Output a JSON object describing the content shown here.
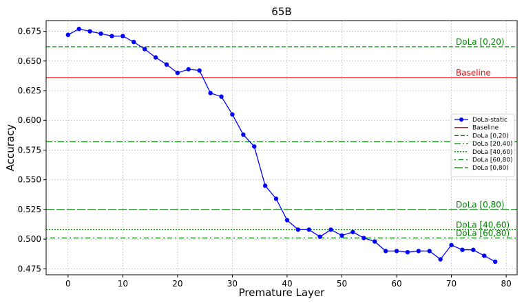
{
  "chart_data": {
    "type": "line",
    "title": "65B",
    "xlabel": "Premature Layer",
    "ylabel": "Accuracy",
    "xlim": [
      -4,
      82
    ],
    "ylim": [
      0.47,
      0.684
    ],
    "xticks": [
      0,
      10,
      20,
      30,
      40,
      50,
      60,
      70,
      80
    ],
    "yticks": [
      0.475,
      0.5,
      0.525,
      0.55,
      0.575,
      0.6,
      0.625,
      0.65,
      0.675
    ],
    "xtick_labels": [
      "0",
      "10",
      "20",
      "30",
      "40",
      "50",
      "60",
      "70",
      "80"
    ],
    "ytick_labels": [
      "0.475",
      "0.500",
      "0.525",
      "0.550",
      "0.575",
      "0.600",
      "0.625",
      "0.650",
      "0.675"
    ],
    "grid": true,
    "legend_position": "center-right",
    "series": [
      {
        "name": "DoLa-static",
        "color": "#0000ff",
        "marker": "circle",
        "x": [
          0,
          2,
          4,
          6,
          8,
          10,
          12,
          14,
          16,
          18,
          20,
          22,
          24,
          26,
          28,
          30,
          32,
          34,
          36,
          38,
          40,
          42,
          44,
          46,
          48,
          50,
          52,
          54,
          56,
          58,
          60,
          62,
          64,
          66,
          68,
          70,
          72,
          74,
          76,
          78
        ],
        "y": [
          0.672,
          0.677,
          0.675,
          0.673,
          0.671,
          0.671,
          0.666,
          0.66,
          0.653,
          0.647,
          0.64,
          0.643,
          0.642,
          0.623,
          0.62,
          0.605,
          0.588,
          0.578,
          0.545,
          0.534,
          0.516,
          0.508,
          0.508,
          0.502,
          0.508,
          0.503,
          0.506,
          0.501,
          0.498,
          0.49,
          0.49,
          0.489,
          0.49,
          0.49,
          0.483,
          0.495,
          0.491,
          0.491,
          0.486,
          0.481
        ]
      }
    ],
    "reference_lines": [
      {
        "name": "Baseline",
        "value": 0.636,
        "color": "#ff0000",
        "style": "solid",
        "annotation": "Baseline"
      },
      {
        "name": "DoLa [0,20)",
        "value": 0.662,
        "color": "#008000",
        "style": "dashed",
        "annotation": "DoLa [0,20)"
      },
      {
        "name": "DoLa [20,40)",
        "value": 0.582,
        "color": "#008000",
        "style": "dashdot",
        "annotation": ""
      },
      {
        "name": "DoLa [40,60)",
        "value": 0.508,
        "color": "#008000",
        "style": "dotted",
        "annotation": "DoLa [40,60)"
      },
      {
        "name": "DoLa [60,80)",
        "value": 0.501,
        "color": "#008000",
        "style": "loosedashdot",
        "annotation": "DoLa [60,80)"
      },
      {
        "name": "DoLa [0,80)",
        "value": 0.525,
        "color": "#008000",
        "style": "longdash",
        "annotation": "DoLa [0,80)"
      }
    ],
    "legend": [
      "DoLa-static",
      "Baseline",
      "DoLa [0,20)",
      "DoLa [20,40)",
      "DoLa [40,60)",
      "DoLa [60,80)",
      "DoLa [0,80)"
    ]
  }
}
